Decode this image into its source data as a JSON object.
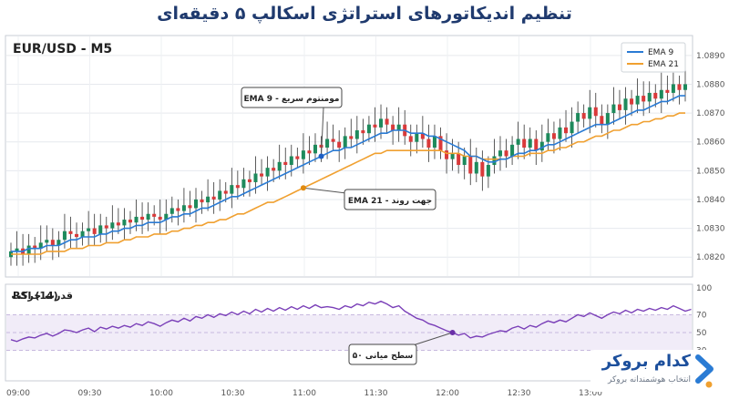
{
  "title": "تنظیم اندیکاتورهای استراتژی اسکالپ ۵ دقیقه‌ای",
  "brand": {
    "name": "کدام بروکر",
    "tagline": "انتخاب هوشمندانه بروکر"
  },
  "colors": {
    "title": "#1f3a6e",
    "bull": "#1e8a5c",
    "bear": "#d93a3a",
    "ema9": "#2a7bd4",
    "ema21": "#f0a030",
    "rsi": "#7a3fb8",
    "rsi_band": "#f1ecf8",
    "brand": "#1c4f9c"
  },
  "chart_data": [
    {
      "type": "candlestick",
      "title": "EUR/USD - M5",
      "legend_position": "top-right",
      "x_ticks": [
        "09:00",
        "09:30",
        "10:00",
        "10:30",
        "11:00",
        "11:30",
        "12:00",
        "12:30",
        "13:00"
      ],
      "y_ticks": [
        "1.0820",
        "1.0830",
        "1.0840",
        "1.0850",
        "1.0860",
        "1.0870",
        "1.0880",
        "1.0890"
      ],
      "ylim": [
        1.0815,
        1.0895
      ],
      "grid": true,
      "close": [
        1.0822,
        1.0823,
        1.0821,
        1.0824,
        1.0823,
        1.0825,
        1.0826,
        1.0824,
        1.0826,
        1.0829,
        1.0828,
        1.0827,
        1.0829,
        1.083,
        1.0828,
        1.0831,
        1.083,
        1.0832,
        1.0831,
        1.0833,
        1.0832,
        1.0834,
        1.0833,
        1.0835,
        1.0834,
        1.0833,
        1.0835,
        1.0837,
        1.0836,
        1.0838,
        1.0837,
        1.084,
        1.0839,
        1.0841,
        1.084,
        1.0843,
        1.0842,
        1.0845,
        1.0844,
        1.0847,
        1.0846,
        1.0849,
        1.0848,
        1.0851,
        1.085,
        1.0853,
        1.0852,
        1.0855,
        1.0854,
        1.0857,
        1.0856,
        1.0859,
        1.0858,
        1.0861,
        1.086,
        1.0858,
        1.0862,
        1.0861,
        1.0864,
        1.0863,
        1.0866,
        1.0865,
        1.0868,
        1.0866,
        1.0864,
        1.0866,
        1.0862,
        1.086,
        1.0863,
        1.0861,
        1.0858,
        1.0862,
        1.0857,
        1.0854,
        1.0856,
        1.0852,
        1.0855,
        1.0849,
        1.0853,
        1.0848,
        1.0852,
        1.0855,
        1.0857,
        1.0855,
        1.0859,
        1.0861,
        1.0858,
        1.0861,
        1.0857,
        1.086,
        1.0863,
        1.0861,
        1.0865,
        1.0863,
        1.0867,
        1.087,
        1.0868,
        1.0872,
        1.0869,
        1.0866,
        1.087,
        1.0873,
        1.0871,
        1.0875,
        1.0873,
        1.0876,
        1.0874,
        1.0877,
        1.0875,
        1.0878,
        1.0877,
        1.088,
        1.0878,
        1.088
      ],
      "series": [
        {
          "name": "EMA 9",
          "values": [
            1.0822,
            1.0822,
            1.0822,
            1.0823,
            1.0823,
            1.0823,
            1.0824,
            1.0824,
            1.0824,
            1.0825,
            1.0826,
            1.0826,
            1.0827,
            1.0827,
            1.0827,
            1.0828,
            1.0828,
            1.0829,
            1.0829,
            1.083,
            1.083,
            1.0831,
            1.0831,
            1.0832,
            1.0832,
            1.0832,
            1.0833,
            1.0834,
            1.0834,
            1.0835,
            1.0835,
            1.0836,
            1.0837,
            1.0837,
            1.0838,
            1.0839,
            1.084,
            1.0841,
            1.0841,
            1.0842,
            1.0843,
            1.0844,
            1.0845,
            1.0846,
            1.0847,
            1.0848,
            1.0849,
            1.085,
            1.0851,
            1.0852,
            1.0853,
            1.0854,
            1.0855,
            1.0856,
            1.0857,
            1.0857,
            1.0858,
            1.0858,
            1.0859,
            1.086,
            1.0861,
            1.0862,
            1.0863,
            1.0863,
            1.0864,
            1.0864,
            1.0864,
            1.0863,
            1.0863,
            1.0863,
            1.0862,
            1.0862,
            1.0861,
            1.086,
            1.0859,
            1.0858,
            1.0857,
            1.0855,
            1.0855,
            1.0854,
            1.0853,
            1.0853,
            1.0854,
            1.0854,
            1.0855,
            1.0856,
            1.0856,
            1.0857,
            1.0857,
            1.0858,
            1.0859,
            1.0859,
            1.086,
            1.0861,
            1.0862,
            1.0863,
            1.0864,
            1.0865,
            1.0866,
            1.0866,
            1.0866,
            1.0867,
            1.0868,
            1.0869,
            1.087,
            1.0871,
            1.0871,
            1.0872,
            1.0873,
            1.0874,
            1.0874,
            1.0875,
            1.0876,
            1.0876
          ]
        },
        {
          "name": "EMA 21",
          "values": [
            1.0821,
            1.0821,
            1.0821,
            1.0821,
            1.0821,
            1.0821,
            1.0822,
            1.0822,
            1.0822,
            1.0822,
            1.0823,
            1.0823,
            1.0823,
            1.0824,
            1.0824,
            1.0824,
            1.0825,
            1.0825,
            1.0825,
            1.0826,
            1.0826,
            1.0827,
            1.0827,
            1.0827,
            1.0828,
            1.0828,
            1.0828,
            1.0829,
            1.0829,
            1.083,
            1.083,
            1.0831,
            1.0831,
            1.0832,
            1.0832,
            1.0833,
            1.0833,
            1.0834,
            1.0835,
            1.0835,
            1.0836,
            1.0837,
            1.0838,
            1.0839,
            1.0839,
            1.084,
            1.0841,
            1.0842,
            1.0843,
            1.0844,
            1.0845,
            1.0846,
            1.0847,
            1.0848,
            1.0849,
            1.085,
            1.0851,
            1.0852,
            1.0853,
            1.0854,
            1.0855,
            1.0856,
            1.0856,
            1.0857,
            1.0857,
            1.0857,
            1.0857,
            1.0857,
            1.0857,
            1.0857,
            1.0857,
            1.0857,
            1.0857,
            1.0856,
            1.0856,
            1.0856,
            1.0855,
            1.0855,
            1.0855,
            1.0854,
            1.0854,
            1.0854,
            1.0854,
            1.0854,
            1.0855,
            1.0855,
            1.0855,
            1.0856,
            1.0856,
            1.0856,
            1.0857,
            1.0857,
            1.0858,
            1.0858,
            1.0859,
            1.086,
            1.086,
            1.0861,
            1.0862,
            1.0862,
            1.0863,
            1.0864,
            1.0864,
            1.0865,
            1.0866,
            1.0866,
            1.0867,
            1.0867,
            1.0868,
            1.0868,
            1.0869,
            1.0869,
            1.087,
            1.087
          ]
        }
      ],
      "annotations": [
        {
          "text": "EMA 9 - مومنتوم سریع",
          "series": "EMA 9",
          "index": 52
        },
        {
          "text": "EMA 21 - جهت روند",
          "series": "EMA 21",
          "index": 49
        }
      ]
    },
    {
      "type": "line",
      "title": "RSI (14)",
      "subtitle": "قدرت حرکت",
      "ylim": [
        0,
        100
      ],
      "y_ticks": [
        "100",
        "70",
        "50",
        "30"
      ],
      "band": [
        30,
        70
      ],
      "series": [
        {
          "name": "RSI (14)",
          "values": [
            42,
            40,
            43,
            45,
            44,
            47,
            49,
            46,
            49,
            53,
            52,
            50,
            53,
            55,
            51,
            56,
            54,
            57,
            55,
            58,
            56,
            60,
            58,
            62,
            60,
            57,
            61,
            64,
            62,
            66,
            63,
            68,
            66,
            70,
            67,
            71,
            69,
            73,
            70,
            74,
            71,
            76,
            73,
            77,
            74,
            78,
            75,
            79,
            76,
            80,
            77,
            81,
            78,
            79,
            78,
            76,
            80,
            78,
            82,
            80,
            84,
            82,
            85,
            82,
            78,
            80,
            74,
            70,
            66,
            64,
            60,
            58,
            55,
            52,
            50,
            47,
            49,
            44,
            46,
            45,
            48,
            50,
            52,
            51,
            55,
            57,
            54,
            58,
            56,
            60,
            63,
            61,
            64,
            62,
            66,
            70,
            68,
            72,
            69,
            66,
            70,
            73,
            71,
            75,
            72,
            76,
            74,
            77,
            75,
            78,
            76,
            80,
            77,
            74,
            76
          ]
        }
      ],
      "annotations": [
        {
          "text": "سطح میانی ۵۰",
          "index": 74
        }
      ]
    }
  ]
}
